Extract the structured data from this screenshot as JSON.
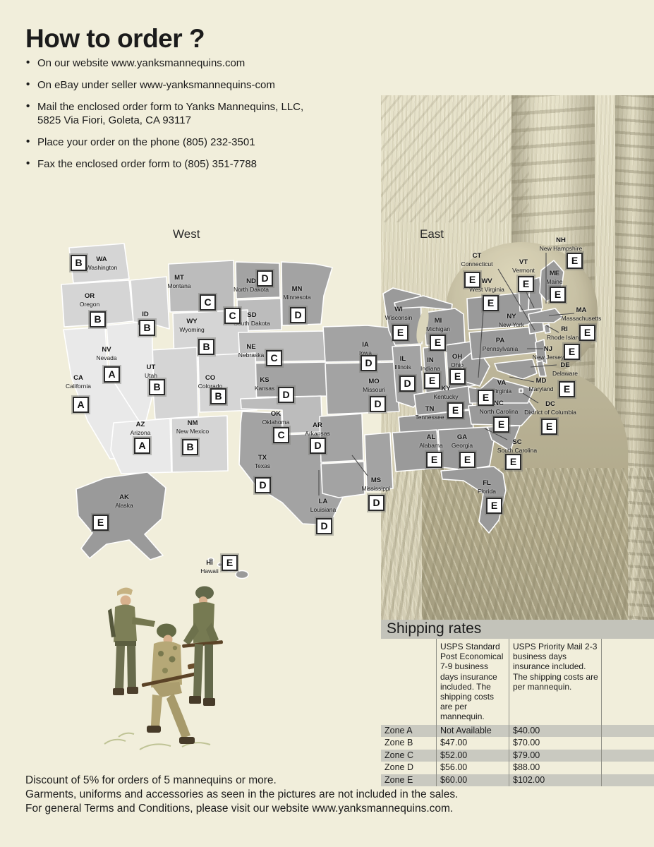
{
  "page": {
    "background": "#f1eedb"
  },
  "how_to_order": {
    "title": "How to order ?",
    "bullets": [
      "On our website www.yanksmannequins.com",
      "On eBay under seller www-yanksmannequins-com",
      "Mail the enclosed order form to Yanks Mannequins, LLC,\n5825 Via Fiori, Goleta, CA 93117",
      "Place your order on the phone (805) 232-3501",
      "Fax the enclosed order form to (805) 351-7788"
    ]
  },
  "map": {
    "west_title": "West",
    "east_title": "East",
    "zone_colors": {
      "A": "#e9e9e9",
      "B": "#d5d5d5",
      "C": "#bcbcbc",
      "D": "#a3a3a3",
      "E": "#9a9a9a"
    },
    "states": [
      {
        "abbr": "WA",
        "name": "Washington",
        "zone": "B",
        "show_badge": true
      },
      {
        "abbr": "OR",
        "name": "Oregon",
        "zone": "B",
        "show_badge": true
      },
      {
        "abbr": "CA",
        "name": "California",
        "zone": "A",
        "show_badge": true
      },
      {
        "abbr": "NV",
        "name": "Nevada",
        "zone": "A",
        "show_badge": true
      },
      {
        "abbr": "ID",
        "name": "Idaho",
        "zone": "B",
        "show_badge": true
      },
      {
        "abbr": "MT",
        "name": "Montana",
        "zone": "C",
        "show_badge": true
      },
      {
        "abbr": "WY",
        "name": "Wyoming",
        "zone": "B",
        "show_badge": true
      },
      {
        "abbr": "UT",
        "name": "Utah",
        "zone": "B",
        "show_badge": true
      },
      {
        "abbr": "CO",
        "name": "Colorado",
        "zone": "B",
        "show_badge": true
      },
      {
        "abbr": "AZ",
        "name": "Arizona",
        "zone": "A",
        "show_badge": true
      },
      {
        "abbr": "NM",
        "name": "New Mexico",
        "zone": "B",
        "show_badge": true
      },
      {
        "abbr": "ND",
        "name": "North Dakota",
        "zone": "D",
        "show_badge": true
      },
      {
        "abbr": "SD",
        "name": "South Dakota",
        "zone": "C",
        "show_badge": true
      },
      {
        "abbr": "NE",
        "name": "Nebraska",
        "zone": "C",
        "show_badge": true
      },
      {
        "abbr": "KS",
        "name": "Kansas",
        "zone": "D",
        "show_badge": true
      },
      {
        "abbr": "OK",
        "name": "Oklahoma",
        "zone": "C",
        "show_badge": true
      },
      {
        "abbr": "TX",
        "name": "Texas",
        "zone": "D",
        "show_badge": true
      },
      {
        "abbr": "MN",
        "name": "Minnesota",
        "zone": "D",
        "show_badge": true
      },
      {
        "abbr": "AK",
        "name": "Alaska",
        "zone": "E",
        "show_badge": true
      },
      {
        "abbr": "HI",
        "name": "Hawaii",
        "zone": "E",
        "show_badge": true
      },
      {
        "abbr": "IA",
        "name": "Iowa",
        "zone": "D",
        "show_badge": true
      },
      {
        "abbr": "MO",
        "name": "Missouri",
        "zone": "D",
        "show_badge": true
      },
      {
        "abbr": "AR",
        "name": "Arkansas",
        "zone": "D",
        "show_badge": true
      },
      {
        "abbr": "LA",
        "name": "Louisiana",
        "zone": "D",
        "show_badge": true
      },
      {
        "abbr": "MS",
        "name": "Mississippi",
        "zone": "D",
        "show_badge": true
      },
      {
        "abbr": "WI",
        "name": "Wisconsin",
        "zone": "E",
        "show_badge": true
      },
      {
        "abbr": "MI",
        "name": "Michigan",
        "zone": "E",
        "show_badge": true
      },
      {
        "abbr": "IL",
        "name": "Illinois",
        "zone": "D",
        "show_badge": true
      },
      {
        "abbr": "IN",
        "name": "Indiana",
        "zone": "E",
        "show_badge": true
      },
      {
        "abbr": "OH",
        "name": "Ohio",
        "zone": "E",
        "show_badge": true
      },
      {
        "abbr": "KY",
        "name": "Kentucky",
        "zone": "E",
        "show_badge": false
      },
      {
        "abbr": "TN",
        "name": "Tennessee",
        "zone": "E",
        "show_badge": true
      },
      {
        "abbr": "WV",
        "name": "West Virginia",
        "zone": "E",
        "show_badge": true
      },
      {
        "abbr": "VA",
        "name": "Virginia",
        "zone": "E",
        "show_badge": true
      },
      {
        "abbr": "NC",
        "name": "North Carolina",
        "zone": "E",
        "show_badge": true
      },
      {
        "abbr": "SC",
        "name": "South Carolina",
        "zone": "E",
        "show_badge": true
      },
      {
        "abbr": "AL",
        "name": "Alabama",
        "zone": "E",
        "show_badge": true
      },
      {
        "abbr": "GA",
        "name": "Georgia",
        "zone": "E",
        "show_badge": true
      },
      {
        "abbr": "FL",
        "name": "Florida",
        "zone": "E",
        "show_badge": true
      },
      {
        "abbr": "DC",
        "name": "District of Columbia",
        "zone": "E",
        "show_badge": true
      },
      {
        "abbr": "MD",
        "name": "Maryland",
        "zone": "E",
        "show_badge": true
      },
      {
        "abbr": "DE",
        "name": "Delaware",
        "zone": "E",
        "show_badge": false
      },
      {
        "abbr": "NJ",
        "name": "New Jersey",
        "zone": "E",
        "show_badge": true
      },
      {
        "abbr": "RI",
        "name": "Rhode Island",
        "zone": "E",
        "show_badge": false
      },
      {
        "abbr": "MA",
        "name": "Massachusetts",
        "zone": "E",
        "show_badge": true
      },
      {
        "abbr": "CT",
        "name": "Connecticut",
        "zone": "E",
        "show_badge": true
      },
      {
        "abbr": "VT",
        "name": "Vermont",
        "zone": "E",
        "show_badge": true
      },
      {
        "abbr": "NH",
        "name": "New Hampshire",
        "zone": "E",
        "show_badge": true
      },
      {
        "abbr": "ME",
        "name": "Maine",
        "zone": "E",
        "show_badge": true
      },
      {
        "abbr": "NY",
        "name": "New York",
        "zone": "",
        "show_badge": false
      },
      {
        "abbr": "PA",
        "name": "Pennsylvania",
        "zone": "",
        "show_badge": false
      }
    ]
  },
  "shipping": {
    "title": "Shipping rates",
    "col_headers": [
      "USPS Standard Post Economical 7-9 business days insurance included. The shipping costs are per mannequin.",
      "USPS Priority Mail 2-3 business days insurance included. The shipping costs are per mannequin."
    ],
    "rows": [
      {
        "zone": "Zone A",
        "standard": "Not Available",
        "priority": "$40.00"
      },
      {
        "zone": "Zone B",
        "standard": "$47.00",
        "priority": "$70.00"
      },
      {
        "zone": "Zone C",
        "standard": "$52.00",
        "priority": "$79.00"
      },
      {
        "zone": "Zone D",
        "standard": "$56.00",
        "priority": "$88.00"
      },
      {
        "zone": "Zone E",
        "standard": "$60.00",
        "priority": "$102.00"
      }
    ]
  },
  "footer": {
    "lines": [
      "Discount of 5% for orders of 5 mannequins or more.",
      "Garments, uniforms and accessories as seen in the pictures are not included in the sales.",
      "For general Terms and Conditions, please visit our website www.yanksmannequins.com."
    ]
  }
}
